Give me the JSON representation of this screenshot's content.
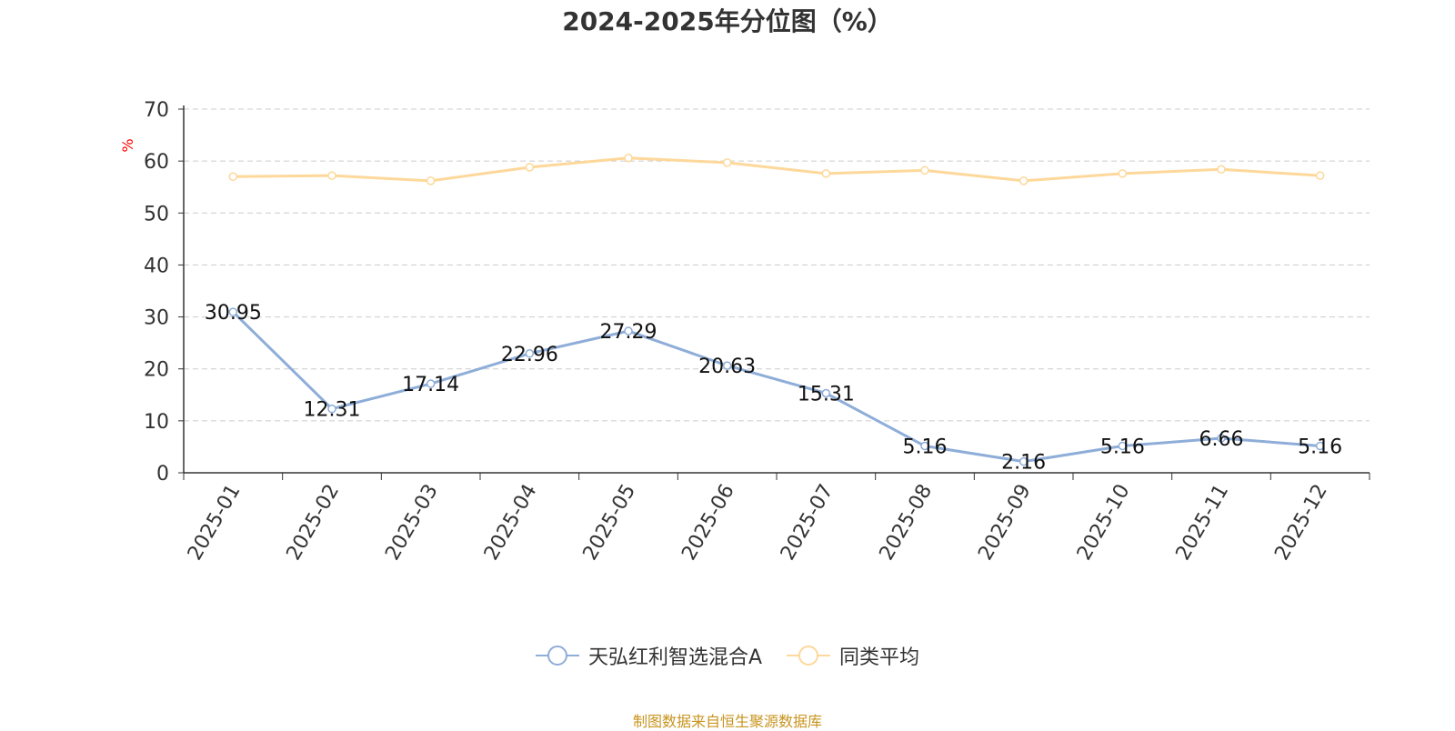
{
  "chart_data": {
    "type": "line",
    "title": "2024-2025年分位图（%）",
    "ylabel": "%",
    "ylim": [
      0,
      70
    ],
    "yticks": [
      0,
      10,
      20,
      30,
      40,
      50,
      60,
      70
    ],
    "grid": true,
    "legend_position": "bottom",
    "categories": [
      "2025-01",
      "2025-02",
      "2025-03",
      "2025-04",
      "2025-05",
      "2025-06",
      "2025-07",
      "2025-08",
      "2025-09",
      "2025-10",
      "2025-11",
      "2025-12"
    ],
    "series": [
      {
        "name": "天弘红利智选混合A",
        "color": "#8eadd8",
        "show_labels": true,
        "values": [
          30.95,
          12.31,
          17.14,
          22.96,
          27.29,
          20.63,
          15.31,
          5.16,
          2.16,
          5.16,
          6.66,
          5.16
        ]
      },
      {
        "name": "同类平均",
        "color": "#fdd89a",
        "show_labels": false,
        "values": [
          57.0,
          57.2,
          56.2,
          58.8,
          60.6,
          59.7,
          57.6,
          58.2,
          56.2,
          57.6,
          58.4,
          57.2
        ]
      }
    ]
  },
  "ylabel_color": "#ff0000",
  "source_text": "制图数据来自恒生聚源数据库",
  "source_color": "#c8941f"
}
